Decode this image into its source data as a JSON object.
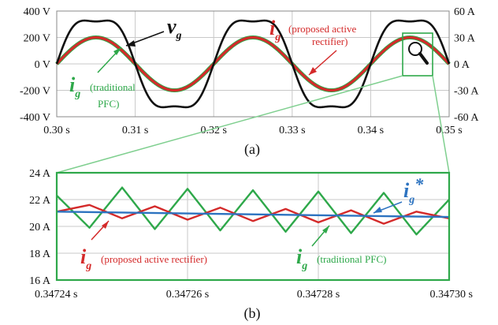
{
  "chart_data": [
    {
      "id": "a",
      "type": "line",
      "caption": "(a)",
      "x_ticks": [
        "0.30 s",
        "0.31 s",
        "0.32 s",
        "0.33 s",
        "0.34 s",
        "0.35 s"
      ],
      "y_left_ticks": [
        "400 V",
        "200 V",
        "0 V",
        "-200 V",
        "-400 V"
      ],
      "y_right_ticks": [
        "60 A",
        "30 A",
        "0 A",
        "-30 A",
        "-60 A"
      ],
      "xlim": [
        0.3,
        0.35
      ],
      "ylim_left": [
        -400,
        400
      ],
      "ylim_right": [
        -60,
        60
      ],
      "grid": true,
      "series": [
        {
          "name": "v_g",
          "axis": "left",
          "color": "#111111",
          "frequency_hz": 50,
          "amplitude": 325,
          "waveform": "flat-topped sine"
        },
        {
          "name": "i_g (proposed active rectifier)",
          "axis": "right",
          "color": "#d42a2a",
          "frequency_hz": 50,
          "amplitude": 30,
          "waveform": "sine"
        },
        {
          "name": "i_g (traditional PFC)",
          "axis": "right",
          "color": "#2ea84a",
          "frequency_hz": 50,
          "amplitude": 30,
          "waveform": "sine"
        }
      ],
      "annotations": {
        "vg": {
          "main": "v",
          "sub": "g"
        },
        "proposed": {
          "main": "i",
          "sub": "g",
          "text1": "(proposed active",
          "text2": "rectifier)"
        },
        "traditional": {
          "main": "i",
          "sub": "g",
          "text1": "(traditional",
          "text2": "PFC)"
        }
      }
    },
    {
      "id": "b",
      "type": "line",
      "caption": "(b)",
      "x_ticks": [
        "0.34724 s",
        "0.34726 s",
        "0.34728 s",
        "0.34730 s"
      ],
      "y_ticks": [
        "24 A",
        "22 A",
        "20 A",
        "18 A",
        "16 A"
      ],
      "xlim": [
        0.34724,
        0.3473
      ],
      "ylim": [
        16,
        24
      ],
      "grid": true,
      "series": [
        {
          "name": "i_g*",
          "color": "#2d73c0",
          "x": [
            0.34724,
            0.3473
          ],
          "y": [
            21.1,
            20.7
          ]
        },
        {
          "name": "i_g (proposed active rectifier)",
          "color": "#d42a2a",
          "x": [
            0.34724,
            0.347245,
            0.34725,
            0.347255,
            0.34726,
            0.347265,
            0.34727,
            0.347275,
            0.34728,
            0.347285,
            0.34729,
            0.347295,
            0.3473
          ],
          "y": [
            21.1,
            21.6,
            20.6,
            21.5,
            20.5,
            21.4,
            20.4,
            21.3,
            20.3,
            21.2,
            20.2,
            21.1,
            20.6
          ]
        },
        {
          "name": "i_g (traditional PFC)",
          "color": "#2ea84a",
          "x": [
            0.34724,
            0.347245,
            0.34725,
            0.347255,
            0.34726,
            0.347265,
            0.34727,
            0.347275,
            0.34728,
            0.347285,
            0.34729,
            0.347295,
            0.3473
          ],
          "y": [
            22.3,
            19.9,
            22.9,
            19.8,
            22.8,
            19.7,
            22.7,
            19.6,
            22.6,
            19.5,
            22.5,
            19.4,
            22.0
          ]
        }
      ],
      "annotations": {
        "ref": {
          "main": "i",
          "sub": "g",
          "sup": "*"
        },
        "proposed": {
          "main": "i",
          "sub": "g",
          "text": "(proposed active rectifier)"
        },
        "traditional": {
          "main": "i",
          "sub": "g",
          "text": "(traditional PFC)"
        }
      }
    }
  ]
}
